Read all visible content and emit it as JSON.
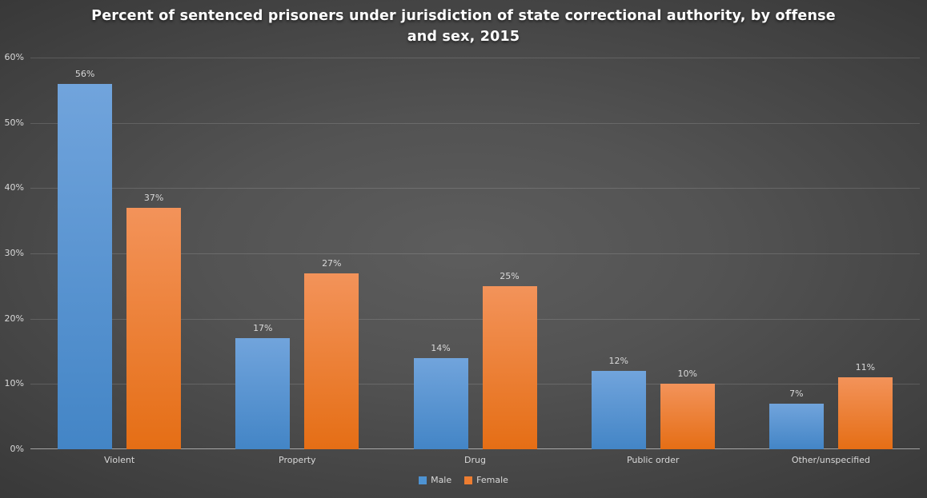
{
  "title": "Percent of sentenced prisoners under jurisdiction of state correctional authority, by offense and sex, 2015",
  "chart_data": {
    "type": "bar",
    "title": "Percent of sentenced prisoners under jurisdiction of state correctional authority, by offense and sex, 2015",
    "categories": [
      "Violent",
      "Property",
      "Drug",
      "Public order",
      "Other/unspecified"
    ],
    "series": [
      {
        "name": "Male",
        "values": [
          56,
          17,
          14,
          12,
          7
        ],
        "labels": [
          "56%",
          "17%",
          "14%",
          "12%",
          "7%"
        ],
        "bar_heights_pct": [
          55.8,
          17.3,
          14.4,
          11.7,
          6.6
        ],
        "color_top": "#71A4DC",
        "color_bottom": "#4385C6",
        "legend_color": "#4E93D2"
      },
      {
        "name": "Female",
        "values": [
          37,
          27,
          25,
          10,
          11
        ],
        "labels": [
          "37%",
          "27%",
          "25%",
          "10%",
          "11%"
        ],
        "bar_heights_pct": [
          36.8,
          26.8,
          24.7,
          9.9,
          10.4
        ],
        "color_top": "#F3935A",
        "color_bottom": "#E56E15",
        "legend_color": "#ED7D31"
      }
    ],
    "xlabel": "",
    "ylabel": "",
    "ylim": [
      0,
      60
    ],
    "yticks": [
      "0%",
      "10%",
      "20%",
      "30%",
      "40%",
      "50%",
      "60%"
    ],
    "grid": true,
    "legend_position": "bottom"
  },
  "colors": {
    "background_center": "#5d5d5d",
    "background_edge": "#2a2a2a",
    "title_text": "#ffffff",
    "label_text": "#d9d9d9",
    "gridline": "rgba(255,255,255,0.14)",
    "axis_line": "rgba(255,255,255,0.52)"
  }
}
